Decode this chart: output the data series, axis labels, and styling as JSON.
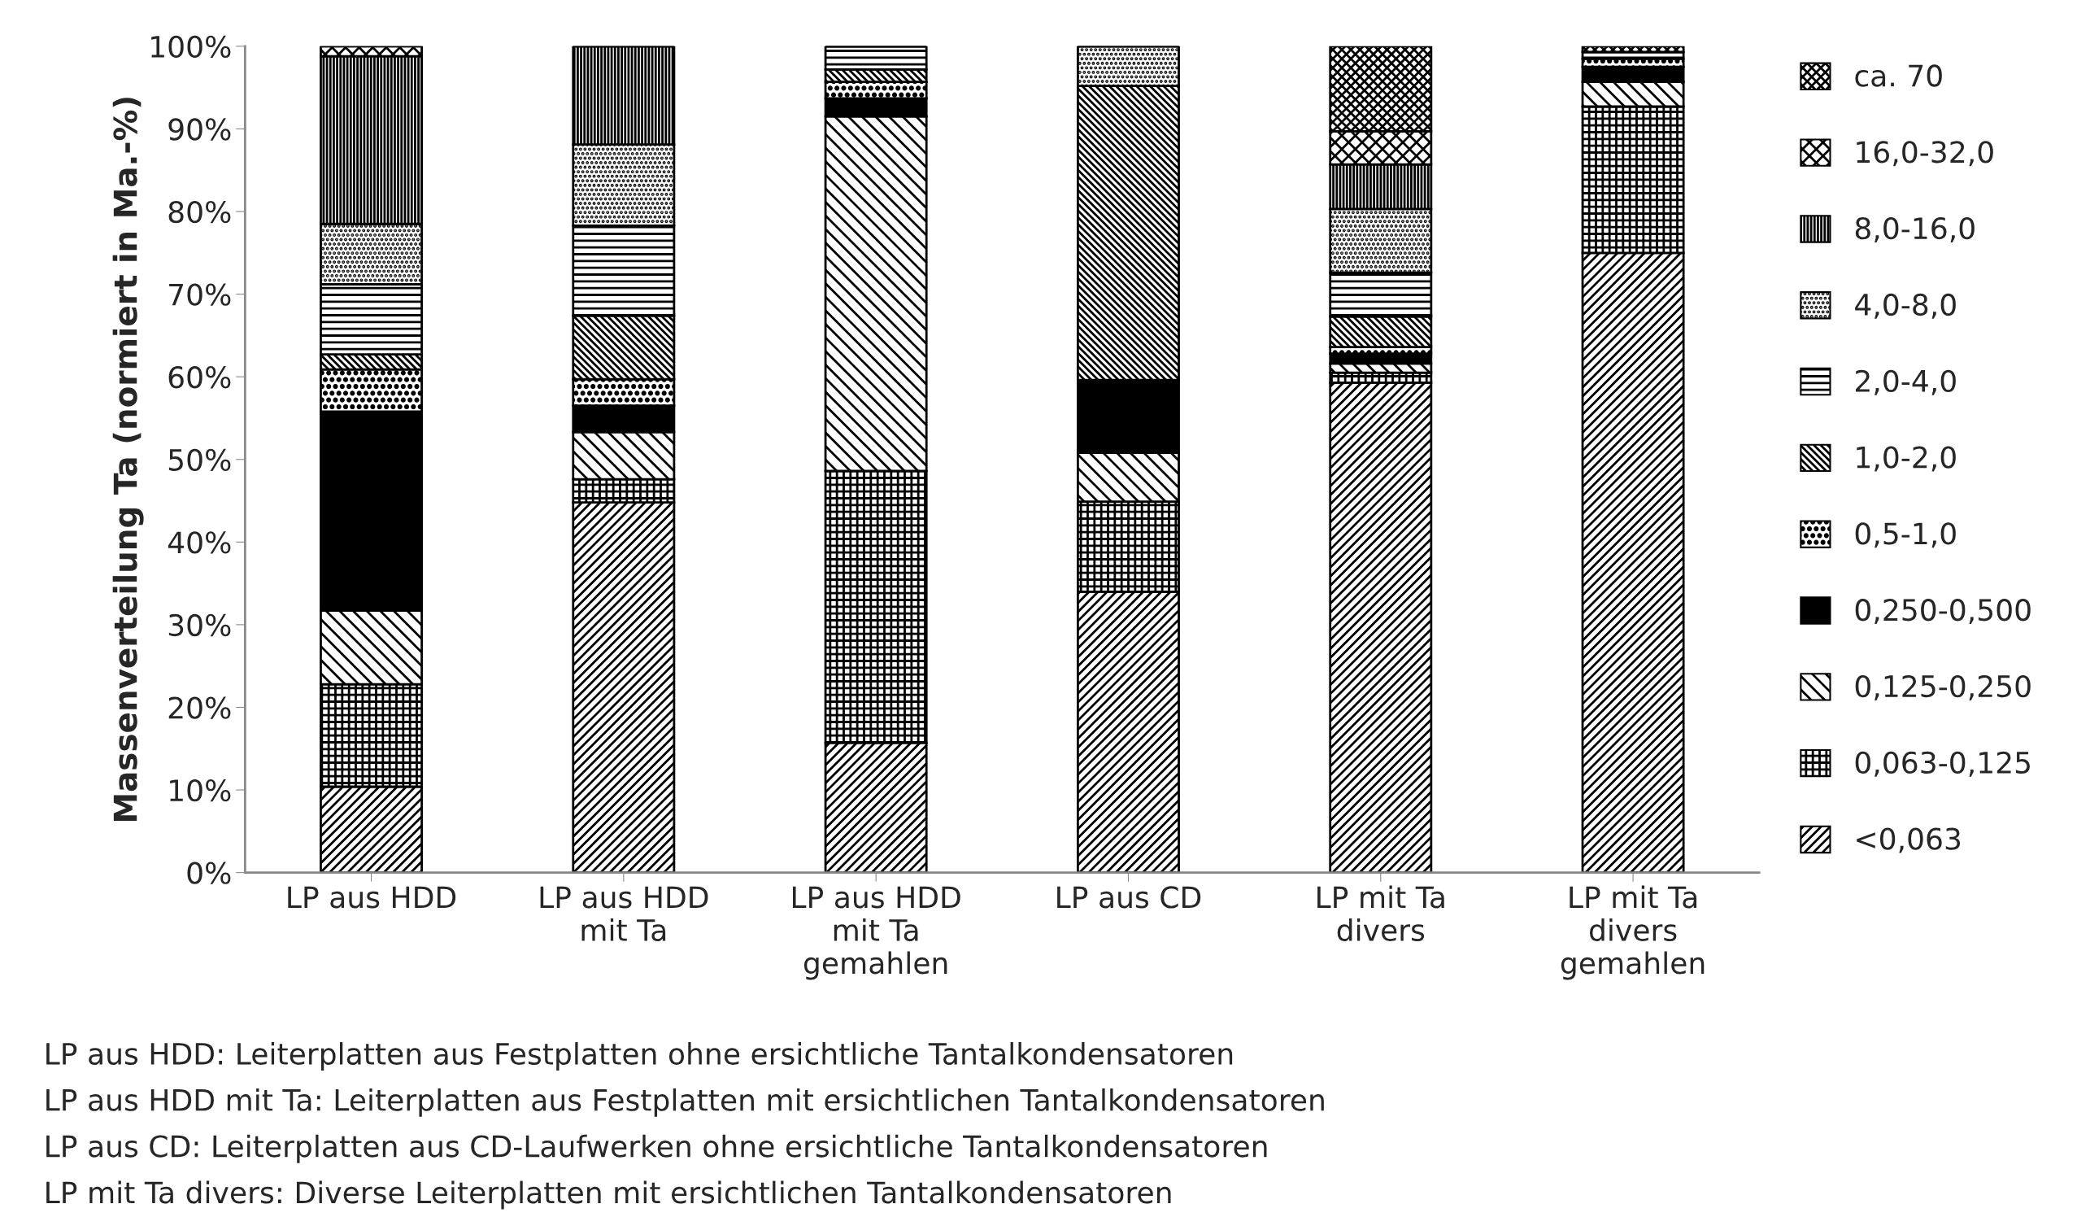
{
  "chart_data": {
    "type": "bar",
    "stacked": true,
    "ylabel": "Massenverteilung Ta (normiert in Ma.-%)",
    "categories": [
      "LP aus HDD",
      "LP aus HDD\nmit Ta",
      "LP aus HDD\nmit Ta\ngemahlen",
      "LP aus CD",
      "LP mit Ta\ndivers",
      "LP mit Ta\ndivers\ngemahlen"
    ],
    "ylim": [
      0,
      100
    ],
    "yticks": [
      {
        "value": 0,
        "label": "0%"
      },
      {
        "value": 10,
        "label": "10%"
      },
      {
        "value": 20,
        "label": "20%"
      },
      {
        "value": 30,
        "label": "30%"
      },
      {
        "value": 40,
        "label": "40%"
      },
      {
        "value": 50,
        "label": "50%"
      },
      {
        "value": 60,
        "label": "60%"
      },
      {
        "value": 70,
        "label": "70%"
      },
      {
        "value": 80,
        "label": "80%"
      },
      {
        "value": 90,
        "label": "90%"
      },
      {
        "value": 100,
        "label": "100%"
      }
    ],
    "grid": false,
    "legend": "right",
    "series": [
      {
        "name": "<0,063",
        "color": "#000000",
        "values": [
          10.4,
          44.8,
          15.7,
          34.0,
          59.3,
          75.0
        ]
      },
      {
        "name": "0,063-0,125",
        "color": "#000000",
        "values": [
          12.4,
          2.8,
          32.9,
          10.9,
          1.2,
          17.7
        ]
      },
      {
        "name": "0,125-0,250",
        "color": "#000000",
        "values": [
          8.9,
          5.7,
          42.9,
          5.9,
          1.1,
          3.0
        ]
      },
      {
        "name": "0,250-0,500",
        "color": "#000000",
        "values": [
          24.1,
          3.2,
          2.2,
          8.8,
          1.2,
          1.8
        ]
      },
      {
        "name": "0,5-1,0",
        "color": "#000000",
        "values": [
          5.1,
          3.2,
          2.0,
          0,
          0.8,
          1.0
        ]
      },
      {
        "name": "1,0-2,0",
        "color": "#000000",
        "values": [
          1.8,
          7.7,
          1.5,
          35.6,
          3.7,
          0
        ]
      },
      {
        "name": "2,0-4,0",
        "color": "#000000",
        "values": [
          8.5,
          10.9,
          2.8,
          0,
          5.3,
          0.8
        ]
      },
      {
        "name": "4,0-8,0",
        "color": "#000000",
        "values": [
          7.3,
          9.8,
          0,
          4.8,
          7.7,
          0
        ]
      },
      {
        "name": "8,0-16,0",
        "color": "#000000",
        "values": [
          20.3,
          11.9,
          0,
          0,
          5.4,
          0
        ]
      },
      {
        "name": "16,0-32,0",
        "color": "#000000",
        "values": [
          1.2,
          0,
          0,
          0,
          4.0,
          0
        ]
      },
      {
        "name": "ca. 70",
        "color": "#000000",
        "values": [
          0,
          0,
          0,
          0,
          10.3,
          0.7
        ]
      }
    ],
    "annotations": [
      "LP aus HDD: Leiterplatten aus Festplatten ohne ersichtliche Tantalkondensatoren",
      "LP aus HDD mit Ta: Leiterplatten aus Festplatten mit ersichtlichen Tantalkondensatoren",
      "LP aus CD: Leiterplatten aus CD-Laufwerken ohne ersichtliche Tantalkondensatoren",
      "LP mit Ta divers: Diverse Leiterplatten mit ersichtlichen Tantalkondensatoren"
    ]
  }
}
